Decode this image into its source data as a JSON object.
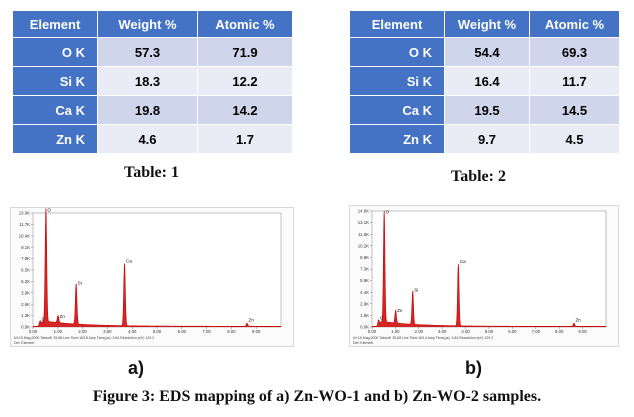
{
  "tables": [
    {
      "headers": [
        "Element",
        "Weight %",
        "Atomic %"
      ],
      "rows": [
        [
          "O K",
          "57.3",
          "71.9"
        ],
        [
          "Si K",
          "18.3",
          "12.2"
        ],
        [
          "Ca K",
          "19.8",
          "14.2"
        ],
        [
          "Zn K",
          "4.6",
          "1.7"
        ]
      ],
      "caption": "Table: 1"
    },
    {
      "headers": [
        "Element",
        "Weight %",
        "Atomic %"
      ],
      "rows": [
        [
          "O K",
          "54.4",
          "69.3"
        ],
        [
          "Si K",
          "16.4",
          "11.7"
        ],
        [
          "Ca K",
          "19.5",
          "14.5"
        ],
        [
          "Zn K",
          "9.7",
          "4.5"
        ]
      ],
      "caption": "Table: 2"
    }
  ],
  "chart_data": [
    {
      "type": "line",
      "panel_label": "a)",
      "x_range": [
        0,
        10
      ],
      "y_range": [
        0,
        13.0
      ],
      "x_ticks": [
        "0.00",
        "1.00",
        "2.00",
        "3.00",
        "4.00",
        "5.00",
        "6.00",
        "7.00",
        "8.00",
        "9.00"
      ],
      "y_ticks": [
        "0.0K",
        "1.3K",
        "2.6K",
        "3.9K",
        "5.2K",
        "6.5K",
        "7.8K",
        "9.1K",
        "10.4K",
        "11.7K",
        "13.0K"
      ],
      "peaks": [
        {
          "label": "C",
          "x": 0.28,
          "y": 0.5
        },
        {
          "label": "O",
          "x": 0.52,
          "y": 12.9
        },
        {
          "label": "Zn",
          "x": 1.01,
          "y": 0.8
        },
        {
          "label": "Si",
          "x": 1.74,
          "y": 4.6
        },
        {
          "label": "Ca",
          "x": 3.69,
          "y": 7.1
        },
        {
          "label": "Zn",
          "x": 8.63,
          "y": 0.35
        }
      ],
      "footer": [
        "kV:15   Mag:2000   Takeoff: 35.68   Live Time:163.8   Amp Time(µs): 3.84   Resolution:(eV) 129.2",
        "Det: Element"
      ],
      "series_color": "#cc0000"
    },
    {
      "type": "line",
      "panel_label": "b)",
      "x_range": [
        0,
        10
      ],
      "y_range": [
        0,
        14.6
      ],
      "x_ticks": [
        "0.00",
        "1.00",
        "2.00",
        "3.00",
        "4.00",
        "5.00",
        "6.00",
        "7.00",
        "8.00",
        "9.00"
      ],
      "y_ticks": [
        "0.0K",
        "1.5K",
        "2.9K",
        "4.4K",
        "5.8K",
        "7.3K",
        "8.8K",
        "10.2K",
        "11.6K",
        "13.1K",
        "14.6K"
      ],
      "peaks": [
        {
          "label": "C",
          "x": 0.28,
          "y": 0.7
        },
        {
          "label": "O",
          "x": 0.52,
          "y": 14.0
        },
        {
          "label": "Zn",
          "x": 1.01,
          "y": 1.6
        },
        {
          "label": "Si",
          "x": 1.74,
          "y": 4.2
        },
        {
          "label": "Ca",
          "x": 3.69,
          "y": 7.8
        },
        {
          "label": "Zn",
          "x": 8.63,
          "y": 0.4
        }
      ],
      "footer": [
        "kV:15   Mag:2000   Takeoff: 35.68   Live Time:163.4   Amp Time(µs): 3.84   Resolution:(eV) 129.2",
        "Det: Element"
      ],
      "series_color": "#cc0000"
    }
  ],
  "figure_caption": "Figure 3: EDS mapping of a) Zn-WO-1 and b) Zn-WO-2 samples."
}
